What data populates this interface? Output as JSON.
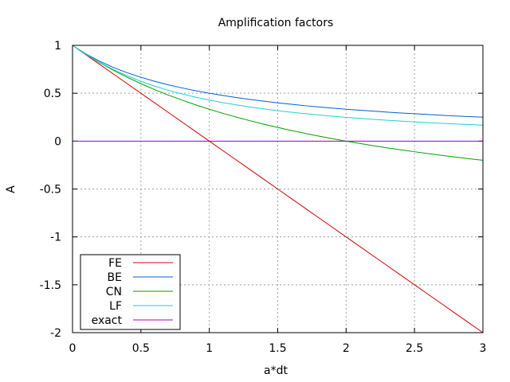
{
  "chart_data": {
    "type": "line",
    "title": "Amplification factors",
    "xlabel": "a*dt",
    "ylabel": "A",
    "xlim": [
      0,
      3
    ],
    "ylim": [
      -2,
      1
    ],
    "xticks": [
      0,
      0.5,
      1,
      1.5,
      2,
      2.5,
      3
    ],
    "xtick_labels": [
      "0",
      "0.5",
      "1",
      "1.5",
      "2",
      "2.5",
      "3"
    ],
    "yticks": [
      -2,
      -1.5,
      -1,
      -0.5,
      0,
      0.5,
      1
    ],
    "ytick_labels": [
      "-2",
      "-1.5",
      "-1",
      "-0.5",
      "0",
      "0.5",
      "1"
    ],
    "grid": true,
    "legend_position": "bottom-left",
    "x": [
      0,
      0.1,
      0.2,
      0.3,
      0.4,
      0.5,
      0.6,
      0.7,
      0.8,
      0.9,
      1.0,
      1.1,
      1.2,
      1.3,
      1.4,
      1.5,
      1.6,
      1.7,
      1.8,
      1.9,
      2.0,
      2.1,
      2.2,
      2.3,
      2.4,
      2.5,
      2.6,
      2.7,
      2.8,
      2.9,
      3.0
    ],
    "series": [
      {
        "name": "FE",
        "color": "#d00000",
        "values": [
          1,
          0.9,
          0.8,
          0.7,
          0.6,
          0.5,
          0.4,
          0.3,
          0.2,
          0.1,
          0,
          -0.1,
          -0.2,
          -0.3,
          -0.4,
          -0.5,
          -0.6,
          -0.7,
          -0.8,
          -0.9,
          -1.0,
          -1.1,
          -1.2,
          -1.3,
          -1.4,
          -1.5,
          -1.6,
          -1.7,
          -1.8,
          -1.9,
          -2.0
        ]
      },
      {
        "name": "BE",
        "color": "#0060d0",
        "values": [
          1,
          0.909,
          0.833,
          0.769,
          0.714,
          0.667,
          0.625,
          0.588,
          0.556,
          0.526,
          0.5,
          0.476,
          0.455,
          0.435,
          0.417,
          0.4,
          0.385,
          0.37,
          0.357,
          0.345,
          0.333,
          0.323,
          0.313,
          0.303,
          0.294,
          0.286,
          0.278,
          0.27,
          0.263,
          0.256,
          0.25
        ]
      },
      {
        "name": "CN",
        "color": "#00a000",
        "values": [
          1,
          0.905,
          0.818,
          0.739,
          0.667,
          0.6,
          0.538,
          0.481,
          0.429,
          0.379,
          0.333,
          0.29,
          0.25,
          0.212,
          0.176,
          0.143,
          0.111,
          0.081,
          0.053,
          0.026,
          0,
          -0.024,
          -0.048,
          -0.07,
          -0.091,
          -0.111,
          -0.13,
          -0.149,
          -0.167,
          -0.184,
          -0.2
        ]
      },
      {
        "name": "LF",
        "color": "#20d0d0",
        "values": [
          1,
          0.905,
          0.821,
          0.747,
          0.682,
          0.625,
          0.575,
          0.531,
          0.493,
          0.459,
          0.429,
          0.402,
          0.378,
          0.356,
          0.336,
          0.318,
          0.302,
          0.287,
          0.273,
          0.26,
          0.248,
          0.237,
          0.227,
          0.218,
          0.209,
          0.201,
          0.193,
          0.186,
          0.179,
          0.173,
          0.167
        ]
      },
      {
        "name": "exact",
        "color": "#b000b0",
        "values": [
          0,
          0,
          0,
          0,
          0,
          0,
          0,
          0,
          0,
          0,
          0,
          0,
          0,
          0,
          0,
          0,
          0,
          0,
          0,
          0,
          0,
          0,
          0,
          0,
          0,
          0,
          0,
          0,
          0,
          0,
          0
        ]
      }
    ]
  }
}
